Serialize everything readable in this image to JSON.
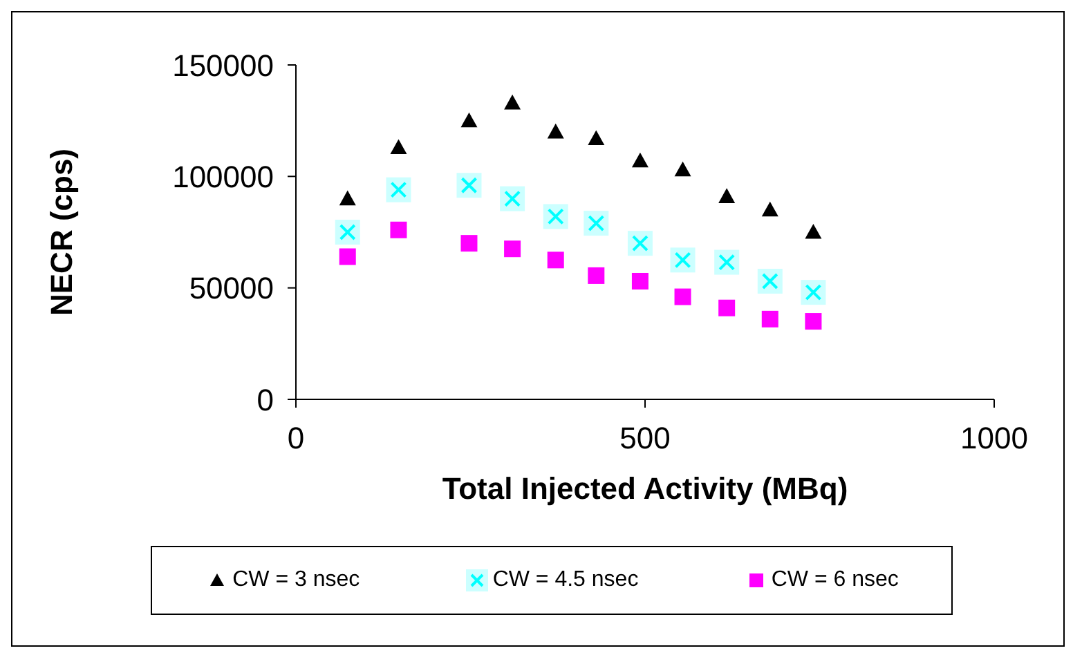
{
  "chart_data": {
    "type": "scatter",
    "xlabel": "Total Injected Activity (MBq)",
    "ylabel": "NECR (cps)",
    "x": [
      74,
      147,
      248,
      310,
      372,
      430,
      493,
      554,
      617,
      679,
      741
    ],
    "series": [
      {
        "name": "CW = 3 nsec",
        "color": "#000000",
        "marker": "triangle",
        "values": [
          90000,
          113000,
          125000,
          133000,
          120000,
          117000,
          107000,
          103000,
          91000,
          85000,
          75000
        ]
      },
      {
        "name": "CW = 4.5 nsec",
        "color": "#00ffff",
        "marker": "cross",
        "values": [
          75000,
          94000,
          96000,
          90000,
          82000,
          79000,
          70000,
          62500,
          61500,
          53000,
          48000
        ]
      },
      {
        "name": "CW = 6 nsec",
        "color": "#ff00ff",
        "marker": "square",
        "values": [
          64000,
          76000,
          70000,
          67500,
          62500,
          55500,
          53000,
          46000,
          41000,
          36000,
          35000
        ]
      }
    ],
    "xlim": [
      0,
      1000
    ],
    "xticks": [
      0,
      500,
      1000
    ],
    "ylim": [
      0,
      150000
    ],
    "yticks": [
      0,
      50000,
      100000,
      150000
    ],
    "grid": false,
    "legend": "bottom"
  }
}
